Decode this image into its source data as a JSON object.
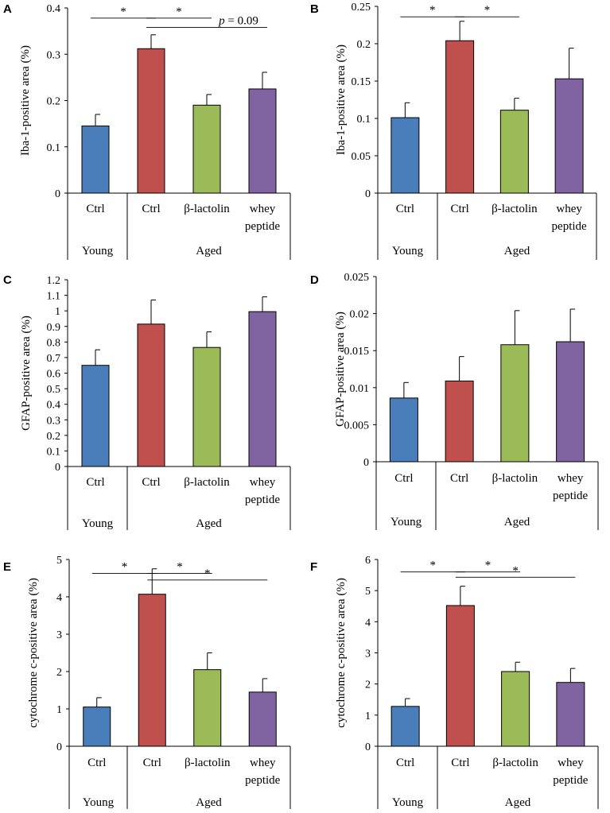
{
  "colors": {
    "young_ctrl": "#4a7ebb",
    "aged_ctrl": "#c0504d",
    "beta_lactolin": "#9bbb59",
    "whey_peptide": "#8064a2"
  },
  "chart_data": [
    {
      "panel": "A",
      "type": "bar",
      "ylabel": "Iba-1-positive area (%)",
      "ylim": [
        0,
        0.4
      ],
      "yticks": [
        "0",
        "0.1",
        "0.2",
        "0.3",
        "0.4"
      ],
      "tick_decimals": 1,
      "categories": [
        "Ctrl",
        "Ctrl",
        "β-lactolin",
        "whey peptide"
      ],
      "groups": [
        "Young",
        "Aged"
      ],
      "values": [
        0.145,
        0.312,
        0.19,
        0.225
      ],
      "errors": [
        0.025,
        0.03,
        0.023,
        0.036
      ],
      "significance": [
        {
          "between": [
            0,
            1
          ],
          "label": "*",
          "y": 0.378
        },
        {
          "between": [
            1,
            2
          ],
          "label": "*",
          "y": 0.378
        },
        {
          "between": [
            1,
            3
          ],
          "label": "p = 0.09",
          "y": 0.358
        }
      ]
    },
    {
      "panel": "B",
      "type": "bar",
      "ylabel": "Iba-1-positive area (%)",
      "ylim": [
        0,
        0.25
      ],
      "yticks": [
        "0",
        "0.05",
        "0.1",
        "0.15",
        "0.2",
        "0.25"
      ],
      "tick_decimals": 2,
      "categories": [
        "Ctrl",
        "Ctrl",
        "β-lactolin",
        "whey peptide"
      ],
      "groups": [
        "Young",
        "Aged"
      ],
      "values": [
        0.101,
        0.204,
        0.111,
        0.153
      ],
      "errors": [
        0.02,
        0.026,
        0.016,
        0.041
      ],
      "significance": [
        {
          "between": [
            0,
            1
          ],
          "label": "*",
          "y": 0.236
        },
        {
          "between": [
            1,
            2
          ],
          "label": "*",
          "y": 0.236
        }
      ]
    },
    {
      "panel": "C",
      "type": "bar",
      "ylabel": "GFAP-positive area (%)",
      "ylim": [
        0,
        1.2
      ],
      "yticks": [
        "0",
        "0.1",
        "0.2",
        "0.3",
        "0.4",
        "0.5",
        "0.6",
        "0.7",
        "0.8",
        "0.9",
        "1",
        "1.1",
        "1.2"
      ],
      "tick_decimals": 1,
      "categories": [
        "Ctrl",
        "Ctrl",
        "β-lactolin",
        "whey peptide"
      ],
      "groups": [
        "Young",
        "Aged"
      ],
      "values": [
        0.65,
        0.915,
        0.765,
        0.995
      ],
      "errors": [
        0.1,
        0.155,
        0.1,
        0.095
      ],
      "significance": []
    },
    {
      "panel": "D",
      "type": "bar",
      "ylabel": "GFAP-positive area (%)",
      "ylim": [
        0,
        0.025
      ],
      "yticks": [
        "0",
        "0.005",
        "0.01",
        "0.015",
        "0.02",
        "0.025"
      ],
      "tick_decimals": 3,
      "categories": [
        "Ctrl",
        "Ctrl",
        "β-lactolin",
        "whey peptide"
      ],
      "groups": [
        "Young",
        "Aged"
      ],
      "values": [
        0.0086,
        0.0109,
        0.0158,
        0.0162
      ],
      "errors": [
        0.0021,
        0.0033,
        0.0046,
        0.0044
      ],
      "significance": []
    },
    {
      "panel": "E",
      "type": "bar",
      "ylabel": "cytochrome c-positive area (%)",
      "ylim": [
        0,
        5
      ],
      "yticks": [
        "0",
        "1",
        "2",
        "3",
        "4",
        "5"
      ],
      "tick_decimals": 0,
      "categories": [
        "Ctrl",
        "Ctrl",
        "β-lactolin",
        "whey peptide"
      ],
      "groups": [
        "Young",
        "Aged"
      ],
      "values": [
        1.05,
        4.07,
        2.05,
        1.45
      ],
      "errors": [
        0.25,
        0.68,
        0.45,
        0.36
      ],
      "significance": [
        {
          "between": [
            0,
            1
          ],
          "label": "*",
          "y": 4.63
        },
        {
          "between": [
            1,
            2
          ],
          "label": "*",
          "y": 4.63
        },
        {
          "between": [
            1,
            3
          ],
          "label": "*",
          "y": 4.45
        }
      ]
    },
    {
      "panel": "F",
      "type": "bar",
      "ylabel": "cytochrome c-positive area (%)",
      "ylim": [
        0,
        6
      ],
      "yticks": [
        "0",
        "1",
        "2",
        "3",
        "4",
        "5",
        "6"
      ],
      "tick_decimals": 0,
      "categories": [
        "Ctrl",
        "Ctrl",
        "β-lactolin",
        "whey peptide"
      ],
      "groups": [
        "Young",
        "Aged"
      ],
      "values": [
        1.28,
        4.52,
        2.4,
        2.05
      ],
      "errors": [
        0.25,
        0.62,
        0.3,
        0.45
      ],
      "significance": [
        {
          "between": [
            0,
            1
          ],
          "label": "*",
          "y": 5.6
        },
        {
          "between": [
            1,
            2
          ],
          "label": "*",
          "y": 5.6
        },
        {
          "between": [
            1,
            3
          ],
          "label": "*",
          "y": 5.43
        }
      ]
    }
  ]
}
